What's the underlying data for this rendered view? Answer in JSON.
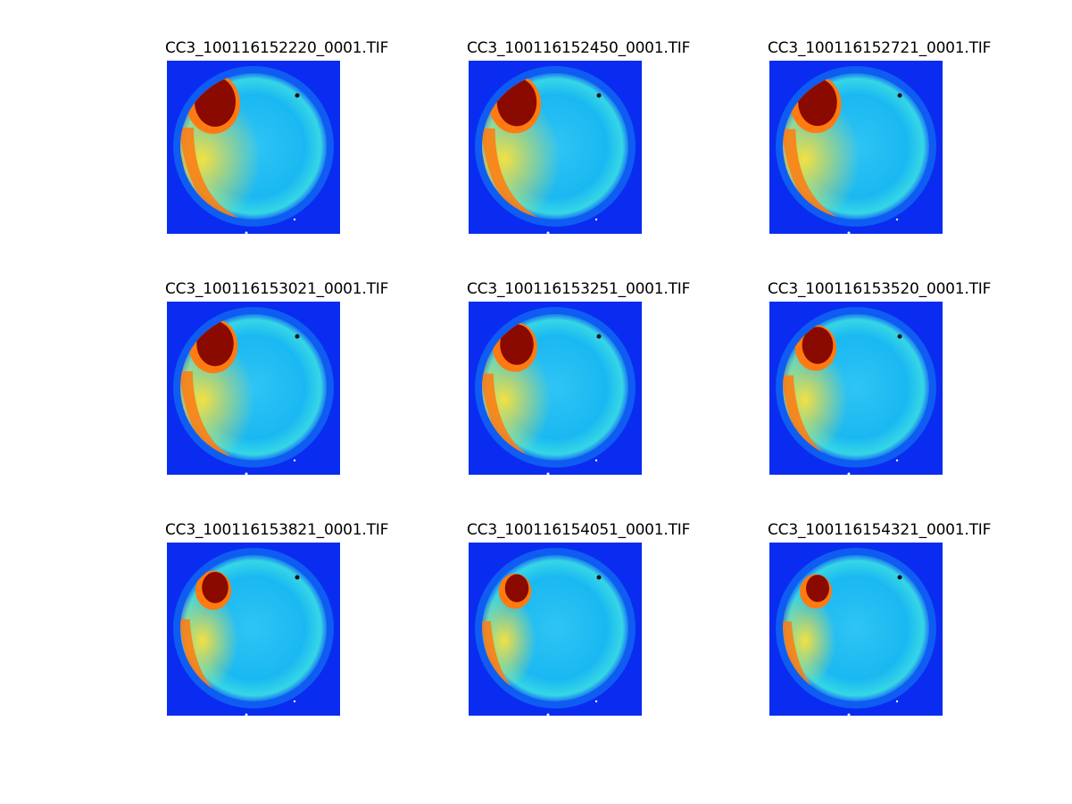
{
  "figure": {
    "colors": {
      "background": "#0a2cf0",
      "cold": "#1ab8f2",
      "warm": "#ffe33a",
      "hot": "#ff7a10",
      "max": "#8a0a00"
    },
    "panels": [
      {
        "title": "CC3_100116152220_0001.TIF",
        "aurora": 1.0
      },
      {
        "title": "CC3_100116152450_0001.TIF",
        "aurora": 0.95
      },
      {
        "title": "CC3_100116152721_0001.TIF",
        "aurora": 0.92
      },
      {
        "title": "CC3_100116153021_0001.TIF",
        "aurora": 0.85
      },
      {
        "title": "CC3_100116153251_0001.TIF",
        "aurora": 0.72
      },
      {
        "title": "CC3_100116153520_0001.TIF",
        "aurora": 0.62
      },
      {
        "title": "CC3_100116153821_0001.TIF",
        "aurora": 0.45
      },
      {
        "title": "CC3_100116154051_0001.TIF",
        "aurora": 0.35
      },
      {
        "title": "CC3_100116154321_0001.TIF",
        "aurora": 0.33
      }
    ]
  }
}
